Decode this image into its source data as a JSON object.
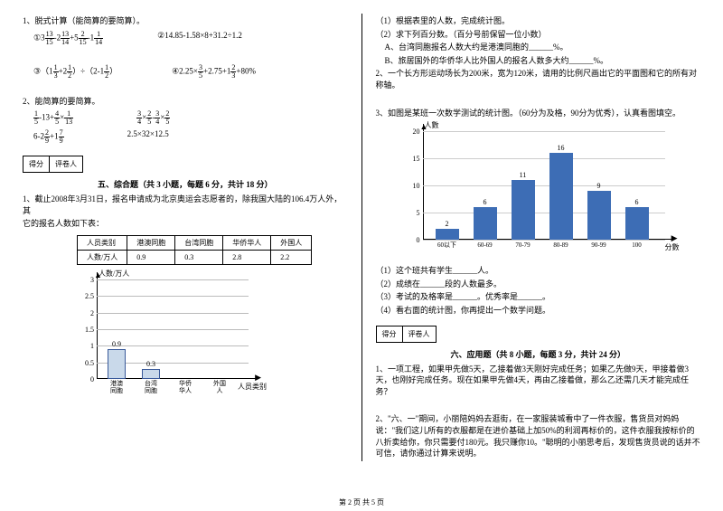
{
  "left": {
    "q1_title": "1、脱式计算（能简算的要简算）。",
    "q1a": {
      "w": "3",
      "n1": "13",
      "d1": "15",
      "n2": "13",
      "d2": "14",
      "n3": "2",
      "d3": "15",
      "n4": "1",
      "d4": "14",
      "op1": "-2",
      "op2": "+5",
      "op3": "-1"
    },
    "q1b": "②14.85-1.58×8+31.2÷1.2",
    "q1c": {
      "pre": "③（1",
      "n1": "1",
      "d1": "3",
      "mid": "+2",
      "n2": "1",
      "d2": "2",
      "post": "）÷（2-1",
      "n3": "1",
      "d3": "2",
      "end": "）"
    },
    "q1d": {
      "pre": "④2.25×",
      "n1": "3",
      "d1": "5",
      "mid": "+2.75+1",
      "n2": "2",
      "d2": "3",
      "end": "+80%"
    },
    "q2_title": "2、能简算的要简算。",
    "q2a": {
      "n1": "1",
      "d1": "5",
      "mid": "-13+",
      "n2": "4",
      "d2": "5",
      "mid2": "×",
      "n3": "1",
      "d3": "13"
    },
    "q2b": {
      "n1": "3",
      "d1": "4",
      "op1": "×",
      "n2": "2",
      "d2": "5",
      "op2": "-",
      "n3": "3",
      "d3": "4",
      "op3": "×",
      "n4": "2",
      "d4": "5"
    },
    "q2c": {
      "pre": "6-2",
      "n1": "2",
      "d1": "9",
      "mid": "+1",
      "n2": "7",
      "d2": "9"
    },
    "q2d": "2.5×32×12.5",
    "score_a": "得分",
    "score_b": "评卷人",
    "sec5": "五、综合题（共 3 小题，每题 6 分，共计 18 分）",
    "p1a": "1、截止2008年3月31日，报名申请成为北京奥运会志愿者的，除我国大陆的106.4万人外，其",
    "p1b": "它的报名人数如下表：",
    "table_headers": [
      "人员类别",
      "港澳同胞",
      "台湾同胞",
      "华侨华人",
      "外国人"
    ],
    "table_row": [
      "人数/万人",
      "0.9",
      "0.3",
      "2.8",
      "2.2"
    ],
    "chart1": {
      "ylabel": "人数/万人",
      "xlabel": "人员类别",
      "yticks": [
        "3",
        "2.5",
        "2",
        "1.5",
        "1",
        "0.5",
        "0"
      ],
      "categories": [
        "港澳\n同胞",
        "台湾\n同胞",
        "华侨\n华人",
        "外国\n人"
      ],
      "values": [
        0.9,
        0.3,
        null,
        null
      ],
      "value_labels": [
        "0.9",
        "0.3",
        "",
        ""
      ],
      "ymax": 3,
      "bar_color": "#c9d9ea",
      "bar_border": "#3a5a9a",
      "grid_color": "#bbbbbb"
    }
  },
  "right": {
    "r1": "（1）根据表里的人数，完成统计图。",
    "r2": "（2）求下列百分数。（百分号前保留一位小数）",
    "r3": "A、台湾同胞报名人数大约是港澳同胞的______%。",
    "r4": "B、旅居国外的华侨华人比外国人的报名人数多大约______%。",
    "r5": "2、一个长方形运动场长为200米，宽为120米，请用的比例尺画出它的平面图和它的所有对称轴。",
    "r6": "3、如图是某班一次数学测试的统计图。（60分为及格，90分为优秀），认真看图填空。",
    "chart2": {
      "ylabel": "人數",
      "xlabel": "分數",
      "yticks": [
        "20",
        "15",
        "10",
        "5",
        "0"
      ],
      "categories": [
        "60以下",
        "60-69",
        "70-79",
        "80-89",
        "90-99",
        "100"
      ],
      "values": [
        2,
        6,
        11,
        16,
        9,
        6
      ],
      "ymax": 20,
      "bar_color": "#3d6db5",
      "grid_color": "#cccccc"
    },
    "q1": "（1）这个班共有学生______人。",
    "q2": "（2）成绩在______段的人数最多。",
    "q3": "（3）考试的及格率是______。优秀率是______。",
    "q4": "（4）看右面的统计图，你再提出一个数学问题。",
    "score_a": "得分",
    "score_b": "评卷人",
    "sec6": "六、应用题（共 8 小题，每题 3 分，共计 24 分）",
    "p6_1": "1、一项工程，如果甲先做5天，乙接着做3天刚好完成任务；如果乙先做9天，甲接着做3天，也刚好完成任务。现在如果甲先做4天，再由乙接着做，那么乙还需几天才能完成任务？",
    "p6_2": "2、\"六、一\"期间，小丽陪妈妈去逛街，在一家服装城看中了一件衣服，售货员对妈妈说：\"我们这儿所有的衣服都是在进价基础上加50%的利润再标价的，这件衣服我按标价的八折卖给你，你只需要付180元。我只赚你10。\"聪明的小丽思考后，发现售货员说的话并不可信，请你通过计算来说明。"
  },
  "footer": "第 2 页 共 5 页"
}
